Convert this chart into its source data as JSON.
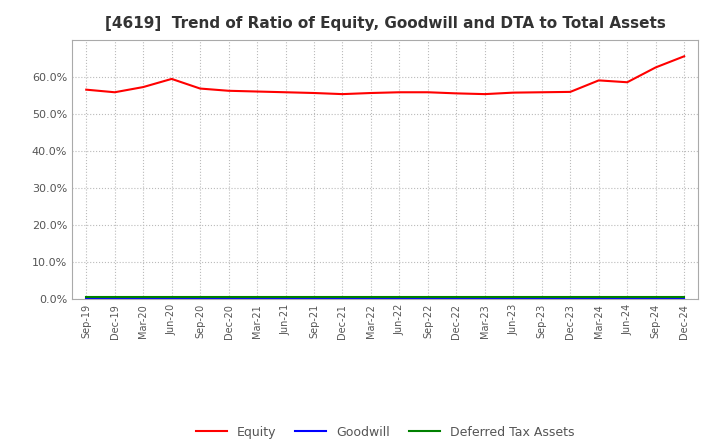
{
  "title": "[4619]  Trend of Ratio of Equity, Goodwill and DTA to Total Assets",
  "x_labels": [
    "Sep-19",
    "Dec-19",
    "Mar-20",
    "Jun-20",
    "Sep-20",
    "Dec-20",
    "Mar-21",
    "Jun-21",
    "Sep-21",
    "Dec-21",
    "Mar-22",
    "Jun-22",
    "Sep-22",
    "Dec-22",
    "Mar-23",
    "Jun-23",
    "Sep-23",
    "Dec-23",
    "Mar-24",
    "Jun-24",
    "Sep-24",
    "Dec-24"
  ],
  "equity": [
    0.565,
    0.558,
    0.572,
    0.594,
    0.568,
    0.562,
    0.56,
    0.558,
    0.556,
    0.553,
    0.556,
    0.558,
    0.558,
    0.555,
    0.553,
    0.557,
    0.558,
    0.559,
    0.59,
    0.585,
    0.625,
    0.655
  ],
  "goodwill": [
    0.0,
    0.0,
    0.0,
    0.0,
    0.0,
    0.0,
    0.0,
    0.0,
    0.0,
    0.0,
    0.0,
    0.0,
    0.0,
    0.0,
    0.0,
    0.0,
    0.0,
    0.0,
    0.0,
    0.0,
    0.0,
    0.0
  ],
  "dta": [
    0.005,
    0.005,
    0.005,
    0.005,
    0.005,
    0.005,
    0.005,
    0.005,
    0.005,
    0.005,
    0.005,
    0.005,
    0.005,
    0.005,
    0.005,
    0.005,
    0.005,
    0.005,
    0.005,
    0.005,
    0.005,
    0.005
  ],
  "equity_color": "#ff0000",
  "goodwill_color": "#0000ff",
  "dta_color": "#008000",
  "ylim": [
    0.0,
    0.7
  ],
  "yticks": [
    0.0,
    0.1,
    0.2,
    0.3,
    0.4,
    0.5,
    0.6
  ],
  "bg_color": "#ffffff",
  "plot_bg_color": "#ffffff",
  "grid_color": "#bbbbbb",
  "title_fontsize": 11,
  "legend_labels": [
    "Equity",
    "Goodwill",
    "Deferred Tax Assets"
  ]
}
